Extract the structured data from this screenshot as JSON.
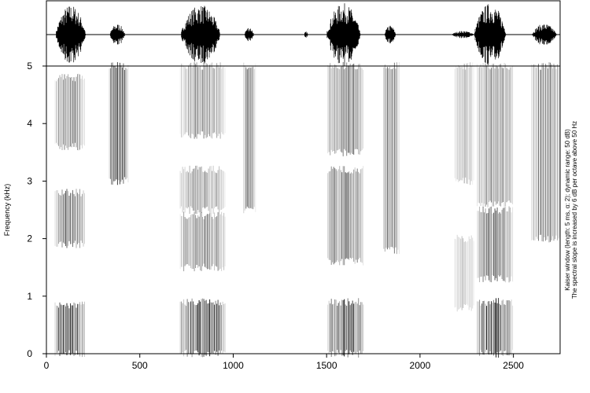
{
  "chart_data": {
    "type": "heatmap",
    "title": "",
    "xlabel": "",
    "ylabel": "Frequency (kHz)",
    "xlim": [
      0,
      2750
    ],
    "ylim": [
      0,
      5
    ],
    "x_ticks": [
      0,
      500,
      1000,
      1500,
      2000,
      2500
    ],
    "y_ticks": [
      0,
      1,
      2,
      3,
      4,
      5
    ],
    "grid": false,
    "colormap": "grayscale",
    "notes": [
      "Kaiser window (length: 5 ms, α: 2); dynamic range: 50 dB)",
      "The spectral slope is increased by 6 dB per octave above 50 Hz"
    ],
    "waveform_segments": [
      {
        "start": 50,
        "end": 210,
        "amplitude": 0.95
      },
      {
        "start": 340,
        "end": 420,
        "amplitude": 0.35
      },
      {
        "start": 720,
        "end": 930,
        "amplitude": 0.95
      },
      {
        "start": 1060,
        "end": 1110,
        "amplitude": 0.25
      },
      {
        "start": 1380,
        "end": 1400,
        "amplitude": 0.1
      },
      {
        "start": 1500,
        "end": 1680,
        "amplitude": 1.0
      },
      {
        "start": 1810,
        "end": 1870,
        "amplitude": 0.3
      },
      {
        "start": 2170,
        "end": 2290,
        "amplitude": 0.12
      },
      {
        "start": 2290,
        "end": 2460,
        "amplitude": 1.0
      },
      {
        "start": 2600,
        "end": 2730,
        "amplitude": 0.35
      }
    ],
    "spectral_segments": [
      {
        "start": 40,
        "end": 210,
        "bands": [
          [
            0,
            0.85,
            0.85
          ],
          [
            1.9,
            2.8,
            0.55
          ],
          [
            3.6,
            4.8,
            0.5
          ]
        ]
      },
      {
        "start": 330,
        "end": 440,
        "bands": [
          [
            3.0,
            5.0,
            0.75
          ]
        ]
      },
      {
        "start": 710,
        "end": 960,
        "bands": [
          [
            0,
            0.9,
            0.85
          ],
          [
            1.5,
            2.4,
            0.6
          ],
          [
            2.5,
            3.2,
            0.45
          ],
          [
            3.8,
            5.0,
            0.45
          ]
        ]
      },
      {
        "start": 1050,
        "end": 1120,
        "bands": [
          [
            2.5,
            5.0,
            0.55
          ]
        ]
      },
      {
        "start": 1500,
        "end": 1700,
        "bands": [
          [
            0,
            0.9,
            0.85
          ],
          [
            1.6,
            3.2,
            0.65
          ],
          [
            3.5,
            5.0,
            0.6
          ]
        ]
      },
      {
        "start": 1800,
        "end": 1890,
        "bands": [
          [
            1.8,
            5.0,
            0.55
          ]
        ]
      },
      {
        "start": 2180,
        "end": 2290,
        "bands": [
          [
            0.8,
            2.0,
            0.25
          ],
          [
            3.0,
            5.0,
            0.3
          ]
        ]
      },
      {
        "start": 2300,
        "end": 2500,
        "bands": [
          [
            0,
            0.9,
            0.85
          ],
          [
            1.3,
            2.5,
            0.6
          ],
          [
            2.6,
            5.0,
            0.55
          ]
        ]
      },
      {
        "start": 2590,
        "end": 2750,
        "bands": [
          [
            2.0,
            5.0,
            0.55
          ]
        ]
      }
    ]
  }
}
